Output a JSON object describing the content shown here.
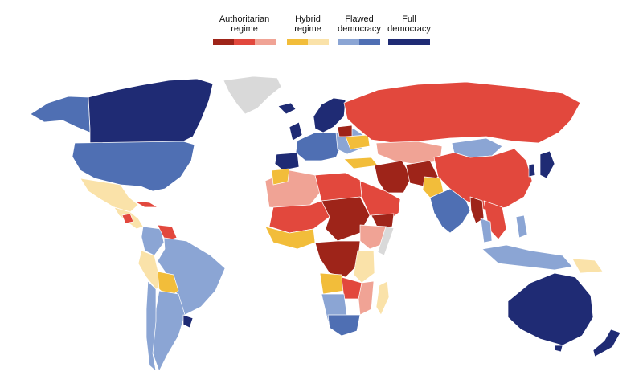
{
  "legend": {
    "groups": [
      {
        "label_line1": "Authoritarian",
        "label_line2": "regime",
        "swatches": [
          "#9e2419",
          "#e2483d",
          "#f0a395"
        ]
      },
      {
        "label_line1": "Hybrid",
        "label_line2": "regime",
        "swatches": [
          "#f2bd3a",
          "#fae2a9"
        ]
      },
      {
        "label_line1": "Flawed",
        "label_line2": "democracy",
        "swatches": [
          "#8ba5d4",
          "#4f6fb3"
        ]
      },
      {
        "label_line1": "Full",
        "label_line2": "democracy",
        "swatches": [
          "#1f2b74"
        ]
      }
    ]
  },
  "colors": {
    "no_data": "#d9d9d9",
    "authoritarian_dark": "#9e2419",
    "authoritarian_mid": "#e2483d",
    "authoritarian_light": "#f0a395",
    "hybrid_dark": "#f2bd3a",
    "hybrid_light": "#fae2a9",
    "flawed_light": "#8ba5d4",
    "flawed_dark": "#4f6fb3",
    "full": "#1f2b74"
  }
}
